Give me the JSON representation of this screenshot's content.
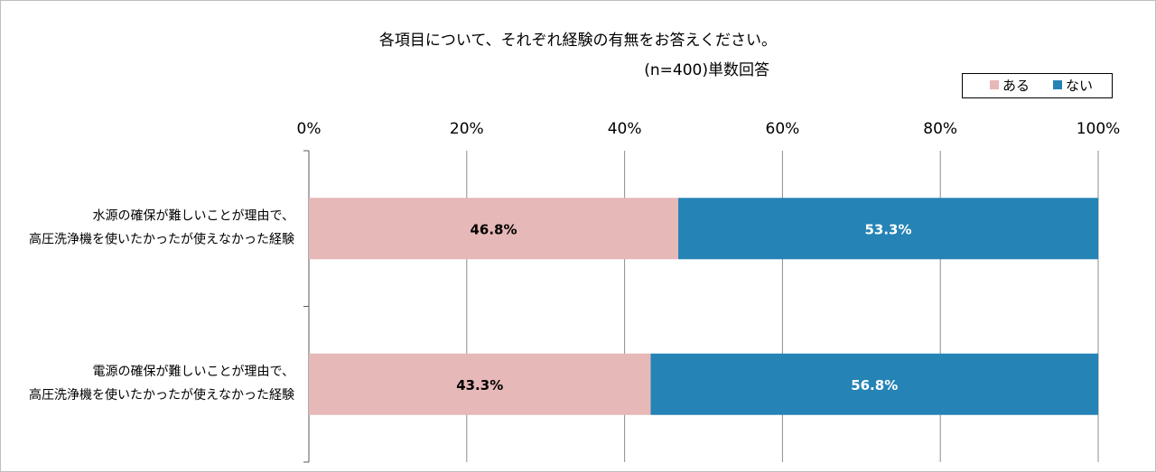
{
  "chart_data": {
    "type": "bar",
    "orientation": "horizontal",
    "stacked": true,
    "title": "各項目について、それぞれ経験の有無をお答えください。",
    "subtitle": "(n=400)単数回答",
    "xlim": [
      0,
      100
    ],
    "x_ticks": [
      "0%",
      "20%",
      "40%",
      "60%",
      "80%",
      "100%"
    ],
    "grid": true,
    "legend_position": "top-right",
    "categories": [
      [
        "水源の確保が難しいことが理由で、",
        "高圧洗浄機を使いたかったが使えなかった経験"
      ],
      [
        "電源の確保が難しいことが理由で、",
        "高圧洗浄機を使いたかったが使えなかった経験"
      ]
    ],
    "series": [
      {
        "name": "ある",
        "color": "#e6b8b7",
        "label_color": "#000000",
        "values": [
          46.8,
          43.3
        ],
        "labels": [
          "46.8%",
          "43.3%"
        ]
      },
      {
        "name": "ない",
        "color": "#2583b5",
        "label_color": "#ffffff",
        "values": [
          53.3,
          56.8
        ],
        "labels": [
          "53.3%",
          "56.8%"
        ]
      }
    ]
  }
}
